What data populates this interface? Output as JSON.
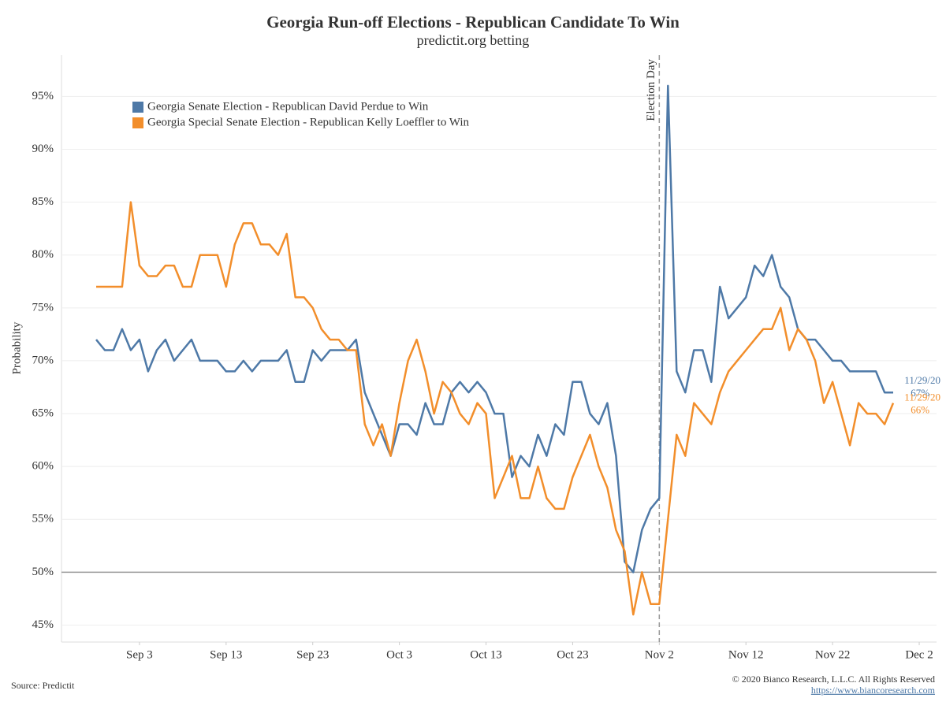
{
  "chart_data": {
    "type": "line",
    "title": "Georgia Run-off Elections - Republican Candidate To Win",
    "subtitle": "predictit.org betting",
    "y_label": "Probability",
    "source": "Source: Predictit",
    "copyright": "© 2020 Bianco Research, L.L.C. All Rights Reserved",
    "url": "https://www.biancoresearch.com",
    "x": [
      "2020-08-29",
      "2020-08-30",
      "2020-08-31",
      "2020-09-01",
      "2020-09-02",
      "2020-09-03",
      "2020-09-04",
      "2020-09-05",
      "2020-09-06",
      "2020-09-07",
      "2020-09-08",
      "2020-09-09",
      "2020-09-10",
      "2020-09-11",
      "2020-09-12",
      "2020-09-13",
      "2020-09-14",
      "2020-09-15",
      "2020-09-16",
      "2020-09-17",
      "2020-09-18",
      "2020-09-19",
      "2020-09-20",
      "2020-09-21",
      "2020-09-22",
      "2020-09-23",
      "2020-09-24",
      "2020-09-25",
      "2020-09-26",
      "2020-09-27",
      "2020-09-28",
      "2020-09-29",
      "2020-09-30",
      "2020-10-01",
      "2020-10-02",
      "2020-10-03",
      "2020-10-04",
      "2020-10-05",
      "2020-10-06",
      "2020-10-07",
      "2020-10-08",
      "2020-10-09",
      "2020-10-10",
      "2020-10-11",
      "2020-10-12",
      "2020-10-13",
      "2020-10-14",
      "2020-10-15",
      "2020-10-16",
      "2020-10-17",
      "2020-10-18",
      "2020-10-19",
      "2020-10-20",
      "2020-10-21",
      "2020-10-22",
      "2020-10-23",
      "2020-10-24",
      "2020-10-25",
      "2020-10-26",
      "2020-10-27",
      "2020-10-28",
      "2020-10-29",
      "2020-10-30",
      "2020-10-31",
      "2020-11-01",
      "2020-11-02",
      "2020-11-03",
      "2020-11-04",
      "2020-11-05",
      "2020-11-06",
      "2020-11-07",
      "2020-11-08",
      "2020-11-09",
      "2020-11-10",
      "2020-11-11",
      "2020-11-12",
      "2020-11-13",
      "2020-11-14",
      "2020-11-15",
      "2020-11-16",
      "2020-11-17",
      "2020-11-18",
      "2020-11-19",
      "2020-11-20",
      "2020-11-21",
      "2020-11-22",
      "2020-11-23",
      "2020-11-24",
      "2020-11-25",
      "2020-11-26",
      "2020-11-27",
      "2020-11-28",
      "2020-11-29"
    ],
    "series": [
      {
        "name": "Georgia Senate Election - Republican David Perdue to Win",
        "color": "#4e79a7",
        "values": [
          72,
          71,
          71,
          73,
          71,
          72,
          69,
          71,
          72,
          70,
          71,
          72,
          70,
          70,
          70,
          69,
          69,
          70,
          69,
          70,
          70,
          70,
          71,
          68,
          68,
          71,
          70,
          71,
          71,
          71,
          72,
          67,
          65,
          63,
          61,
          64,
          64,
          63,
          66,
          64,
          64,
          67,
          68,
          67,
          68,
          67,
          65,
          65,
          59,
          61,
          60,
          63,
          61,
          64,
          63,
          68,
          68,
          65,
          64,
          66,
          61,
          51,
          50,
          54,
          56,
          57,
          96,
          69,
          67,
          71,
          71,
          68,
          77,
          74,
          75,
          76,
          79,
          78,
          80,
          77,
          76,
          73,
          72,
          72,
          71,
          70,
          70,
          69,
          69,
          69,
          69,
          67,
          67
        ],
        "end_date_label": "11/29/20",
        "end_value_label": "67%"
      },
      {
        "name": "Georgia Special Senate Election - Republican Kelly Loeffler to Win",
        "color": "#f28e2b",
        "values": [
          77,
          77,
          77,
          77,
          85,
          79,
          78,
          78,
          79,
          79,
          77,
          77,
          80,
          80,
          80,
          77,
          81,
          83,
          83,
          81,
          81,
          80,
          82,
          76,
          76,
          75,
          73,
          72,
          72,
          71,
          71,
          64,
          62,
          64,
          61,
          66,
          70,
          72,
          69,
          65,
          68,
          67,
          65,
          64,
          66,
          65,
          57,
          59,
          61,
          57,
          57,
          60,
          57,
          56,
          56,
          59,
          61,
          63,
          60,
          58,
          54,
          52,
          46,
          50,
          47,
          47,
          55,
          63,
          61,
          66,
          65,
          64,
          67,
          69,
          70,
          71,
          72,
          73,
          73,
          75,
          71,
          73,
          72,
          70,
          66,
          68,
          65,
          62,
          66,
          65,
          65,
          64,
          66
        ],
        "end_date_label": "11/29/20",
        "end_value_label": "66%"
      }
    ],
    "xlim": [
      "2020-08-25",
      "2020-12-04"
    ],
    "xticks": [
      {
        "value": "2020-09-03",
        "label": "Sep 3"
      },
      {
        "value": "2020-09-13",
        "label": "Sep 13"
      },
      {
        "value": "2020-09-23",
        "label": "Sep 23"
      },
      {
        "value": "2020-10-03",
        "label": "Oct 3"
      },
      {
        "value": "2020-10-13",
        "label": "Oct 13"
      },
      {
        "value": "2020-10-23",
        "label": "Oct 23"
      },
      {
        "value": "2020-11-02",
        "label": "Nov 2"
      },
      {
        "value": "2020-11-12",
        "label": "Nov 12"
      },
      {
        "value": "2020-11-22",
        "label": "Nov 22"
      },
      {
        "value": "2020-12-02",
        "label": "Dec 2"
      }
    ],
    "ylim": [
      43.4,
      98.9
    ],
    "yticks": [
      {
        "value": 45,
        "label": "45%"
      },
      {
        "value": 50,
        "label": "50%"
      },
      {
        "value": 55,
        "label": "55%"
      },
      {
        "value": 60,
        "label": "60%"
      },
      {
        "value": 65,
        "label": "65%"
      },
      {
        "value": 70,
        "label": "70%"
      },
      {
        "value": 75,
        "label": "75%"
      },
      {
        "value": 80,
        "label": "80%"
      },
      {
        "value": 85,
        "label": "85%"
      },
      {
        "value": 90,
        "label": "90%"
      },
      {
        "value": 95,
        "label": "95%"
      }
    ],
    "grid": true,
    "reference_line": 50,
    "vline": {
      "x": "2020-11-02",
      "label": "Election Day"
    },
    "legend": "upper left"
  }
}
